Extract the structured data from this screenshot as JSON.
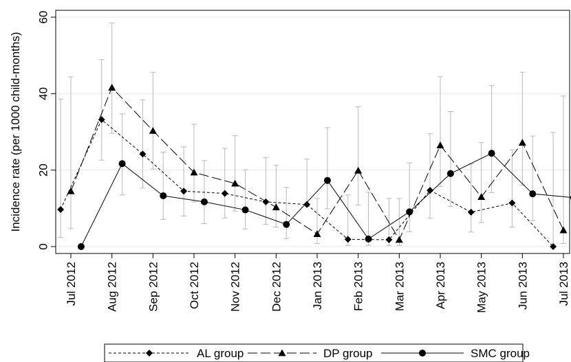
{
  "chart_data": {
    "type": "line",
    "title": "",
    "xlabel": "",
    "ylabel": "Incidence rate (per 1000 child-months)",
    "ylim": [
      0,
      60
    ],
    "yticks": [
      "0",
      "20",
      "40",
      "60"
    ],
    "categories": [
      "Jul 2012",
      "Aug 2012",
      "Sep 2012",
      "Oct 2012",
      "Nov 2012",
      "Dec 2012",
      "Jan 2013",
      "Feb 2013",
      "Mar 2013",
      "Apr 2013",
      "May 2013",
      "Jun 2013",
      "Jul 2013"
    ],
    "grid": true,
    "error_bars": true,
    "legend_position": "bottom",
    "series": [
      {
        "name": "AL group",
        "style": "short-dash, diamond markers",
        "offset": -0.25,
        "values": [
          9.7,
          33.2,
          24.2,
          14.5,
          13.9,
          11.7,
          11.0,
          1.9,
          1.8,
          14.7,
          9.0,
          11.4,
          0
        ],
        "ci_low": [
          2.4,
          22.6,
          15.3,
          8.0,
          7.5,
          5.8,
          null,
          0.3,
          0.3,
          7.4,
          3.8,
          5.1,
          null
        ],
        "ci_high": [
          38.6,
          48.9,
          38.4,
          26.1,
          25.7,
          23.3,
          22.9,
          13.5,
          12.6,
          29.5,
          21.7,
          25.3,
          29.9
        ]
      },
      {
        "name": "DP group",
        "style": "long-dash, triangle markers",
        "offset": 0,
        "values": [
          14.5,
          41.6,
          30.3,
          19.4,
          16.5,
          10.3,
          3.3,
          19.9,
          1.8,
          26.5,
          13.0,
          27.2,
          4.3
        ],
        "ci_low": [
          4.7,
          29.6,
          20.3,
          11.7,
          9.3,
          5.1,
          0.8,
          10.9,
          0.3,
          15.7,
          6.3,
          16.1,
          0.8
        ],
        "ci_high": [
          44.4,
          58.5,
          45.6,
          32.0,
          29.0,
          21.3,
          12.6,
          36.6,
          12.6,
          44.5,
          27.2,
          45.6,
          39.4
        ]
      },
      {
        "name": "SMC group",
        "style": "solid, circle markers",
        "offset": 0.25,
        "values": [
          0,
          21.7,
          13.3,
          11.7,
          9.6,
          5.8,
          17.3,
          2.0,
          9.1,
          19.1,
          24.4,
          13.8,
          12.8
        ],
        "ci_low": [
          null,
          13.5,
          7.1,
          6.0,
          4.6,
          2.1,
          9.9,
          0.3,
          3.9,
          10.5,
          14.1,
          6.8,
          4.0
        ],
        "ci_high": [
          null,
          34.7,
          24.7,
          22.5,
          20.1,
          15.5,
          31.1,
          14.2,
          21.9,
          35.3,
          42.1,
          28.9,
          39.6
        ]
      }
    ]
  }
}
